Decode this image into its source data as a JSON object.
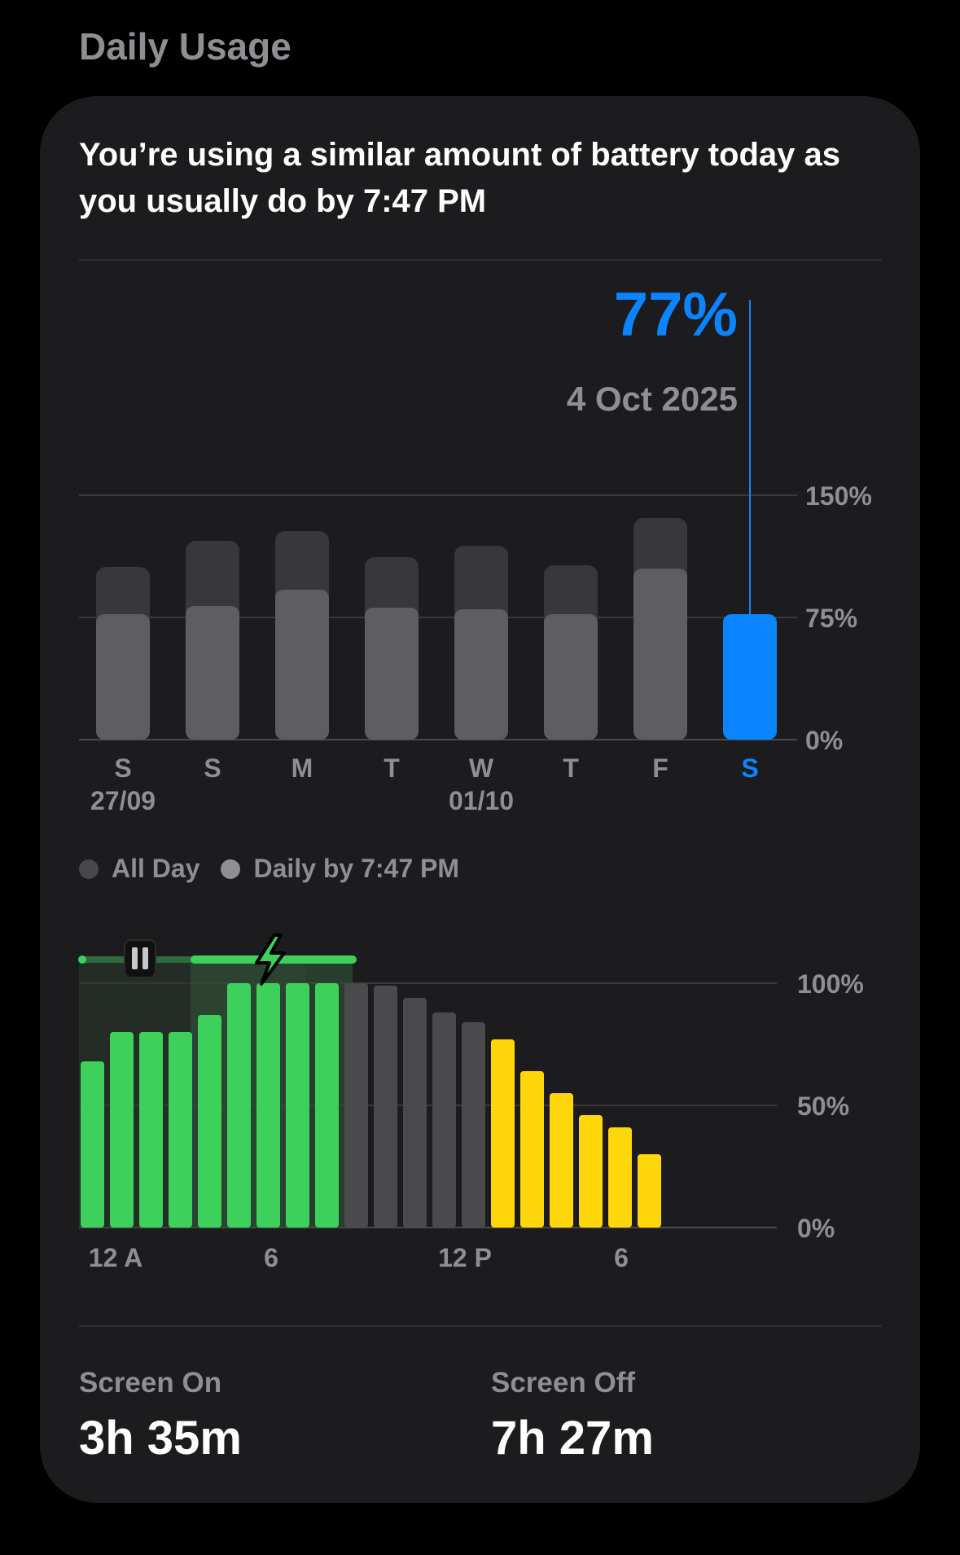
{
  "section_title": "Daily Usage",
  "headline": "You’re using a similar amount of battery today as you usually do by 7:47 PM",
  "selection": {
    "percent": "77%",
    "date": "4 Oct 2025"
  },
  "legend": [
    {
      "label": "All Day",
      "color": "#48484a"
    },
    {
      "label": "Daily by 7:47 PM",
      "color": "#8e8e93"
    }
  ],
  "weekly": {
    "yticks": [
      "150%",
      "75%",
      "0%"
    ],
    "days": [
      {
        "label": "S",
        "date": "27/09",
        "all_day": 106,
        "by_time": 77
      },
      {
        "label": "S",
        "date": "",
        "all_day": 122,
        "by_time": 82
      },
      {
        "label": "M",
        "date": "",
        "all_day": 128,
        "by_time": 92
      },
      {
        "label": "T",
        "date": "",
        "all_day": 112,
        "by_time": 81
      },
      {
        "label": "W",
        "date": "01/10",
        "all_day": 119,
        "by_time": 80
      },
      {
        "label": "T",
        "date": "",
        "all_day": 107,
        "by_time": 77
      },
      {
        "label": "F",
        "date": "",
        "all_day": 136,
        "by_time": 105
      },
      {
        "label": "S",
        "date": "",
        "all_day": 77,
        "by_time": 77,
        "selected": true
      }
    ]
  },
  "hourly": {
    "yticks": [
      "100%",
      "50%",
      "0%"
    ],
    "xticks": [
      "12 A",
      "6",
      "12 P",
      "6"
    ],
    "levels": [
      68,
      80,
      80,
      80,
      87,
      100,
      100,
      100,
      100,
      100,
      99,
      94,
      88,
      84,
      77,
      64,
      55,
      46,
      41,
      30
    ],
    "colors": [
      "green",
      "green",
      "green",
      "green",
      "green",
      "green",
      "green",
      "green",
      "green",
      "gray",
      "gray",
      "gray",
      "gray",
      "gray",
      "yellow",
      "yellow",
      "yellow",
      "yellow",
      "yellow",
      "yellow"
    ]
  },
  "chart_data": [
    {
      "type": "bar",
      "categories": [
        "S 27/09",
        "S",
        "M",
        "T",
        "W 01/10",
        "T",
        "F",
        "S"
      ],
      "series": [
        {
          "name": "All Day",
          "values": [
            106,
            122,
            128,
            112,
            119,
            107,
            136,
            77
          ]
        },
        {
          "name": "Daily by 7:47 PM",
          "values": [
            77,
            82,
            92,
            81,
            80,
            77,
            105,
            77
          ]
        }
      ],
      "ylim": [
        0,
        150
      ]
    },
    {
      "type": "bar",
      "x_ticks": [
        "12 A",
        "6",
        "12 P",
        "6"
      ],
      "values": [
        68,
        80,
        80,
        80,
        87,
        100,
        100,
        100,
        100,
        100,
        99,
        94,
        88,
        84,
        77,
        64,
        55,
        46,
        41,
        30
      ],
      "ylim": [
        0,
        100
      ]
    }
  ],
  "screen_on": {
    "label": "Screen On",
    "value": "3h 35m"
  },
  "screen_off": {
    "label": "Screen Off",
    "value": "7h 27m"
  }
}
